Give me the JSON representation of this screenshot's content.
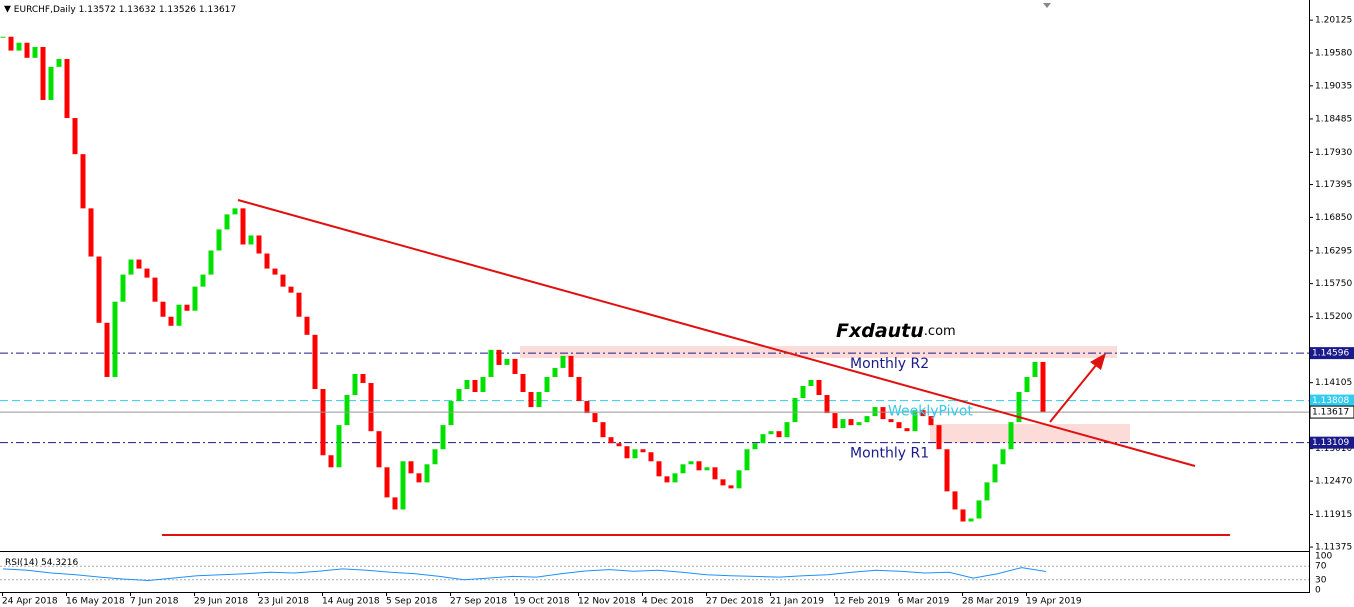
{
  "chart_data": {
    "type": "candlestick",
    "symbol": "EURCHF,Daily",
    "ohlc": [
      1.13572,
      1.13632,
      1.13526,
      1.13617
    ],
    "up_color": "#00e000",
    "down_color": "#ff0000",
    "dates": [
      "24 Apr 2018",
      "16 May 2018",
      "7 Jun 2018",
      "29 Jun 2018",
      "23 Jul 2018",
      "14 Aug 2018",
      "5 Sep 2018",
      "27 Sep 2018",
      "19 Oct 2018",
      "12 Nov 2018",
      "4 Dec 2018",
      "27 Dec 2018",
      "21 Jan 2019",
      "12 Feb 2019",
      "6 Mar 2019",
      "28 Mar 2019",
      "19 Apr 2019"
    ],
    "closes": [
      1.1985,
      1.1962,
      1.1975,
      1.195,
      1.1968,
      1.188,
      1.1935,
      1.1948,
      1.185,
      1.179,
      1.17,
      1.162,
      1.151,
      1.142,
      1.1545,
      1.159,
      1.1615,
      1.16,
      1.1585,
      1.1545,
      1.152,
      1.1505,
      1.154,
      1.153,
      1.157,
      1.159,
      1.163,
      1.1665,
      1.169,
      1.17,
      1.164,
      1.1655,
      1.1625,
      1.16,
      1.159,
      1.157,
      1.156,
      1.152,
      1.149,
      1.14,
      1.129,
      1.127,
      1.134,
      1.139,
      1.1425,
      1.141,
      1.133,
      1.127,
      1.122,
      1.12,
      1.128,
      1.126,
      1.1245,
      1.1275,
      1.13,
      1.134,
      1.138,
      1.14,
      1.1415,
      1.1395,
      1.142,
      1.1465,
      1.144,
      1.145,
      1.1425,
      1.1395,
      1.137,
      1.1395,
      1.142,
      1.1435,
      1.1455,
      1.142,
      1.138,
      1.136,
      1.1345,
      1.132,
      1.131,
      1.1305,
      1.1285,
      1.13,
      1.1295,
      1.128,
      1.1255,
      1.1245,
      1.126,
      1.1275,
      1.128,
      1.1265,
      1.127,
      1.125,
      1.124,
      1.1235,
      1.1265,
      1.13,
      1.131,
      1.1325,
      1.133,
      1.132,
      1.1345,
      1.1385,
      1.1405,
      1.1415,
      1.139,
      1.136,
      1.1335,
      1.135,
      1.134,
      1.1345,
      1.1355,
      1.137,
      1.135,
      1.1345,
      1.1335,
      1.133,
      1.1365,
      1.1355,
      1.134,
      1.13,
      1.123,
      1.12,
      1.118,
      1.1185,
      1.1215,
      1.1245,
      1.1275,
      1.13,
      1.1345,
      1.1395,
      1.142,
      1.1445,
      1.13617
    ],
    "ylim": [
      1.1131,
      1.2046
    ],
    "yticks": [
      {
        "value": 1.20125,
        "label": "1.20125"
      },
      {
        "value": 1.1958,
        "label": "1.19580"
      },
      {
        "value": 1.19035,
        "label": "1.19035"
      },
      {
        "value": 1.18485,
        "label": "1.18485"
      },
      {
        "value": 1.1793,
        "label": "1.17930"
      },
      {
        "value": 1.17395,
        "label": "1.17395"
      },
      {
        "value": 1.1685,
        "label": "1.16850"
      },
      {
        "value": 1.16295,
        "label": "1.16295"
      },
      {
        "value": 1.1575,
        "label": "1.15750"
      },
      {
        "value": 1.152,
        "label": "1.15200"
      },
      {
        "value": 1.14105,
        "label": "1.14105"
      },
      {
        "value": 1.1301,
        "label": "1.13010"
      },
      {
        "value": 1.1247,
        "label": "1.12470"
      },
      {
        "value": 1.11915,
        "label": "1.11915"
      },
      {
        "value": 1.11375,
        "label": "1.11375"
      }
    ],
    "levels": [
      {
        "name": "Monthly R2",
        "value": 1.14596,
        "color": "#1a1a8c",
        "style": "dashdot"
      },
      {
        "name": "WeeklyPivot",
        "value": 1.13808,
        "color": "#33ccee",
        "style": "dash"
      },
      {
        "name": "Monthly R1",
        "value": 1.13109,
        "color": "#1a1a8c",
        "style": "dashdot"
      }
    ],
    "watermark": [
      "Fxdautu",
      ".com"
    ],
    "watermark_color": "#1f7bd8",
    "rsi": {
      "label": "RSI(14)",
      "color": "#1e90ff",
      "ylim": [
        0,
        100
      ],
      "yticks": [
        100,
        70,
        30,
        0
      ],
      "values": [
        62,
        58,
        50,
        45,
        38,
        32,
        28,
        35,
        42,
        45,
        48,
        52,
        50,
        55,
        62,
        58,
        52,
        48,
        40,
        30,
        35,
        40,
        38,
        48,
        56,
        60,
        55,
        58,
        52,
        45,
        42,
        40,
        38,
        42,
        45,
        52,
        58,
        55,
        50,
        52,
        35,
        48,
        66,
        54.3216
      ]
    }
  }
}
